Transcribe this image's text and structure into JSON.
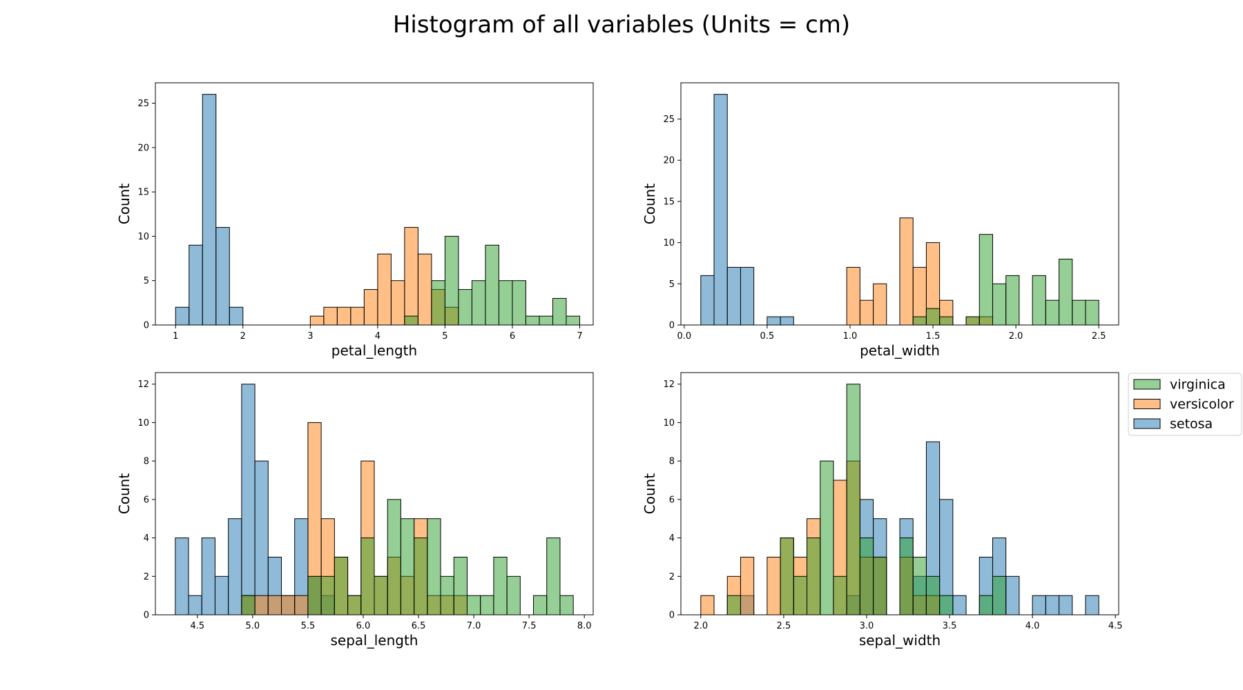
{
  "figure": {
    "title": "Histogram of all variables (Units = cm)"
  },
  "legend": {
    "placement": "right of lower-right panel",
    "entries": [
      {
        "name": "virginica",
        "color": "#2ca02c"
      },
      {
        "name": "versicolor",
        "color": "#ff7f0e"
      },
      {
        "name": "setosa",
        "color": "#1f77b4"
      }
    ]
  },
  "chart_data": [
    {
      "type": "bar",
      "histogram": true,
      "xlabel": "petal_length",
      "ylabel": "Count",
      "xlim": [
        0.7,
        7.2
      ],
      "ylim": [
        0,
        27.3
      ],
      "xticks": [
        1,
        2,
        3,
        4,
        5,
        6,
        7
      ],
      "xtick_labels": [
        "1",
        "2",
        "3",
        "4",
        "5",
        "6",
        "7"
      ],
      "yticks": [
        0,
        5,
        10,
        15,
        20,
        25
      ],
      "grid": false,
      "bin_start": 1.0,
      "bin_width": 0.2,
      "series": [
        {
          "name": "setosa",
          "color": "#1f77b4",
          "counts": [
            2,
            9,
            26,
            11,
            2,
            0,
            0,
            0,
            0,
            0,
            0,
            0,
            0,
            0,
            0,
            0,
            0,
            0,
            0,
            0,
            0,
            0,
            0,
            0,
            0,
            0,
            0,
            0,
            0,
            0
          ]
        },
        {
          "name": "versicolor",
          "color": "#ff7f0e",
          "counts": [
            0,
            0,
            0,
            0,
            0,
            0,
            0,
            0,
            0,
            0,
            1,
            2,
            2,
            2,
            4,
            8,
            5,
            11,
            8,
            4,
            2,
            0,
            0,
            0,
            0,
            0,
            0,
            0,
            0,
            0
          ]
        },
        {
          "name": "virginica",
          "color": "#2ca02c",
          "counts": [
            0,
            0,
            0,
            0,
            0,
            0,
            0,
            0,
            0,
            0,
            0,
            0,
            0,
            0,
            0,
            0,
            0,
            1,
            0,
            5,
            10,
            4,
            5,
            9,
            5,
            5,
            1,
            1,
            3,
            1
          ]
        }
      ]
    },
    {
      "type": "bar",
      "histogram": true,
      "xlabel": "petal_width",
      "ylabel": "Count",
      "xlim": [
        -0.02,
        2.62
      ],
      "ylim": [
        0,
        29.4
      ],
      "xticks": [
        0.0,
        0.5,
        1.0,
        1.5,
        2.0,
        2.5
      ],
      "xtick_labels": [
        "0.0",
        "0.5",
        "1.0",
        "1.5",
        "2.0",
        "2.5"
      ],
      "yticks": [
        0,
        5,
        10,
        15,
        20,
        25
      ],
      "grid": false,
      "bin_start": 0.1,
      "bin_width": 0.08,
      "series": [
        {
          "name": "setosa",
          "color": "#1f77b4",
          "counts": [
            6,
            28,
            7,
            7,
            0,
            1,
            1,
            0,
            0,
            0,
            0,
            0,
            0,
            0,
            0,
            0,
            0,
            0,
            0,
            0,
            0,
            0,
            0,
            0,
            0,
            0,
            0,
            0,
            0,
            0
          ]
        },
        {
          "name": "versicolor",
          "color": "#ff7f0e",
          "counts": [
            0,
            0,
            0,
            0,
            0,
            0,
            0,
            0,
            0,
            0,
            0,
            7,
            3,
            5,
            0,
            13,
            7,
            10,
            3,
            0,
            1,
            1,
            0,
            0,
            0,
            0,
            0,
            0,
            0,
            0
          ]
        },
        {
          "name": "virginica",
          "color": "#2ca02c",
          "counts": [
            0,
            0,
            0,
            0,
            0,
            0,
            0,
            0,
            0,
            0,
            0,
            0,
            0,
            0,
            0,
            0,
            1,
            2,
            1,
            0,
            1,
            11,
            5,
            6,
            0,
            6,
            3,
            8,
            3,
            3
          ]
        }
      ]
    },
    {
      "type": "bar",
      "histogram": true,
      "xlabel": "sepal_length",
      "ylabel": "Count",
      "xlim": [
        4.12,
        8.08
      ],
      "ylim": [
        0,
        12.6
      ],
      "xticks": [
        4.5,
        5.0,
        5.5,
        6.0,
        6.5,
        7.0,
        7.5,
        8.0
      ],
      "xtick_labels": [
        "4.5",
        "5.0",
        "5.5",
        "6.0",
        "6.5",
        "7.0",
        "7.5",
        "8.0"
      ],
      "yticks": [
        0,
        2,
        4,
        6,
        8,
        10,
        12
      ],
      "grid": false,
      "bin_start": 4.3,
      "bin_width": 0.12,
      "series": [
        {
          "name": "setosa",
          "color": "#1f77b4",
          "counts": [
            4,
            1,
            4,
            2,
            5,
            12,
            8,
            3,
            1,
            5,
            2,
            1,
            0,
            0,
            0,
            0,
            0,
            0,
            0,
            0,
            0,
            0,
            0,
            0,
            0,
            0,
            0,
            0,
            0,
            0
          ]
        },
        {
          "name": "versicolor",
          "color": "#ff7f0e",
          "counts": [
            0,
            0,
            0,
            0,
            0,
            1,
            1,
            1,
            1,
            1,
            10,
            5,
            3,
            1,
            8,
            2,
            3,
            2,
            5,
            1,
            1,
            1,
            0,
            0,
            0,
            0,
            0,
            0,
            0,
            0
          ]
        },
        {
          "name": "virginica",
          "color": "#2ca02c",
          "counts": [
            0,
            0,
            0,
            0,
            0,
            1,
            0,
            0,
            0,
            0,
            2,
            2,
            3,
            1,
            4,
            2,
            6,
            5,
            4,
            5,
            2,
            3,
            1,
            1,
            3,
            2,
            0,
            1,
            4,
            1
          ]
        }
      ]
    },
    {
      "type": "bar",
      "histogram": true,
      "xlabel": "sepal_width",
      "ylabel": "Count",
      "xlim": [
        1.88,
        4.52
      ],
      "ylim": [
        0,
        12.6
      ],
      "xticks": [
        2.0,
        2.5,
        3.0,
        3.5,
        4.0,
        4.5
      ],
      "xtick_labels": [
        "2.0",
        "2.5",
        "3.0",
        "3.5",
        "4.0",
        "4.5"
      ],
      "yticks": [
        0,
        2,
        4,
        6,
        8,
        10,
        12
      ],
      "grid": false,
      "bin_start": 2.0,
      "bin_width": 0.08,
      "series": [
        {
          "name": "setosa",
          "color": "#1f77b4",
          "counts": [
            0,
            0,
            0,
            1,
            0,
            0,
            0,
            0,
            0,
            0,
            0,
            1,
            6,
            5,
            0,
            5,
            2,
            9,
            6,
            1,
            0,
            3,
            4,
            2,
            0,
            1,
            1,
            1,
            0,
            1
          ]
        },
        {
          "name": "versicolor",
          "color": "#ff7f0e",
          "counts": [
            1,
            0,
            2,
            3,
            0,
            3,
            4,
            3,
            5,
            0,
            7,
            8,
            3,
            3,
            0,
            3,
            1,
            1,
            0,
            0,
            0,
            0,
            0,
            0,
            0,
            0,
            0,
            0,
            0,
            0
          ]
        },
        {
          "name": "virginica",
          "color": "#2ca02c",
          "counts": [
            0,
            0,
            1,
            0,
            0,
            0,
            4,
            2,
            4,
            8,
            2,
            12,
            4,
            3,
            0,
            4,
            3,
            2,
            1,
            0,
            0,
            1,
            2,
            0,
            0,
            0,
            0,
            0,
            0,
            0
          ]
        }
      ]
    }
  ]
}
